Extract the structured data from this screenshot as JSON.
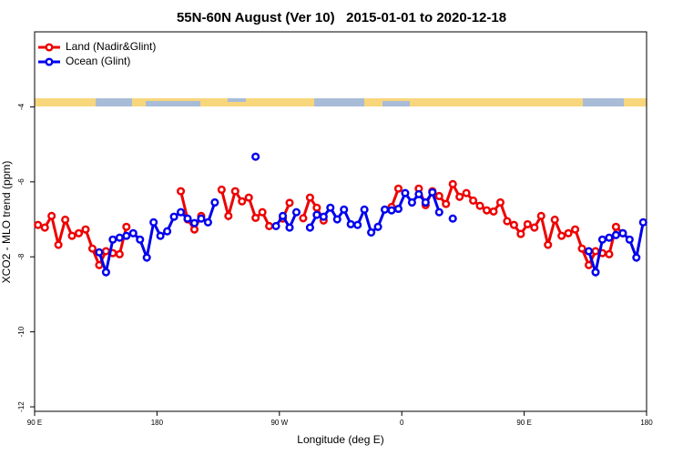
{
  "chart_data": {
    "type": "line",
    "title": "55N-60N August (Ver 10)   2015-01-01 to 2020-12-18",
    "xlabel": "Longitude (deg E)",
    "ylabel": "XCO2 - MLO trend (ppm)",
    "legend": "top-left",
    "xlim": [
      90,
      540
    ],
    "xticks": [
      {
        "value": 90,
        "label": "90 E"
      },
      180,
      {
        "value": 270,
        "label": "90 W"
      },
      {
        "value": 360,
        "label": "0"
      },
      {
        "value": 450,
        "label": "90 E"
      },
      {
        "value": 540,
        "label": "180"
      }
    ],
    "ylim": [
      -12.12,
      -2
    ],
    "yticks": [
      -4,
      -6,
      -8,
      -10,
      -12
    ],
    "x": [
      92.5,
      97.5,
      102.5,
      107.5,
      112.5,
      117.5,
      122.5,
      127.5,
      132.5,
      137.5,
      142.5,
      147.5,
      152.5,
      157.5,
      162.5,
      167.5,
      172.5,
      177.5,
      182.5,
      187.5,
      192.5,
      197.5,
      202.5,
      207.5,
      212.5,
      217.5,
      222.5,
      227.5,
      232.5,
      237.5,
      242.5,
      247.5,
      252.5,
      257.5,
      262.5,
      267.5,
      272.5,
      277.5,
      282.5,
      287.5,
      292.5,
      297.5,
      302.5,
      307.5,
      312.5,
      317.5,
      322.5,
      327.5,
      332.5,
      337.5,
      342.5,
      347.5,
      352.5,
      357.5,
      362.5,
      367.5,
      372.5,
      377.5,
      382.5,
      387.5,
      392.5,
      397.5,
      402.5,
      407.5,
      412.5,
      417.5,
      422.5,
      427.5,
      432.5,
      437.5,
      442.5,
      447.5,
      452.5,
      457.5,
      462.5,
      467.5,
      472.5,
      477.5,
      482.5,
      487.5,
      492.5,
      497.5,
      502.5,
      507.5,
      512.5,
      517.5,
      522.5,
      527.5,
      532.5,
      537.5
    ],
    "series": [
      {
        "name": "Land (Nadir&Glint)",
        "color": "#ee0000",
        "values": [
          -7.15,
          -7.22,
          -6.91,
          -7.68,
          -7.01,
          -7.44,
          -7.37,
          -7.27,
          -7.78,
          -8.22,
          -7.85,
          -7.9,
          -7.93,
          -7.2,
          null,
          null,
          null,
          null,
          null,
          null,
          null,
          -6.25,
          -7.0,
          -7.27,
          -6.91,
          null,
          null,
          -6.21,
          -6.91,
          -6.25,
          -6.52,
          -6.42,
          -6.96,
          -6.81,
          -7.18,
          null,
          -6.98,
          -6.56,
          null,
          -6.97,
          -6.42,
          -6.69,
          -7.03,
          null,
          null,
          null,
          null,
          null,
          null,
          null,
          null,
          null,
          -6.67,
          -6.18,
          null,
          null,
          -6.18,
          -6.62,
          -6.25,
          -6.38,
          -6.59,
          -6.06,
          -6.4,
          -6.3,
          -6.5,
          -6.64,
          -6.76,
          -6.79,
          -6.55,
          -7.05,
          -7.15,
          -7.39,
          -7.13,
          -7.22,
          -6.91,
          -7.68,
          -7.01,
          -7.44,
          -7.37,
          -7.27,
          -7.78,
          -8.22,
          -7.85,
          -7.9,
          -7.93,
          -7.2,
          -7.37,
          null,
          null,
          null
        ]
      },
      {
        "name": "Ocean (Glint)",
        "color": "#0000ee",
        "values": [
          null,
          null,
          null,
          null,
          null,
          null,
          null,
          null,
          null,
          -7.88,
          -8.41,
          -7.54,
          -7.49,
          -7.44,
          -7.37,
          -7.54,
          -8.02,
          -7.08,
          -7.44,
          -7.32,
          -6.93,
          -6.81,
          -6.98,
          -7.1,
          -6.98,
          -7.08,
          -6.55,
          null,
          null,
          null,
          null,
          null,
          -5.33,
          null,
          null,
          -7.18,
          -6.91,
          -7.22,
          -6.81,
          null,
          -7.22,
          -6.88,
          -6.93,
          -6.69,
          -7.0,
          -6.74,
          -7.13,
          -7.15,
          -6.74,
          -7.35,
          -7.2,
          -6.74,
          -6.76,
          -6.72,
          -6.3,
          -6.55,
          -6.33,
          -6.55,
          -6.28,
          -6.81,
          null,
          -6.98,
          null,
          null,
          null,
          null,
          null,
          null,
          null,
          null,
          null,
          null,
          null,
          null,
          null,
          null,
          null,
          null,
          null,
          null,
          null,
          -7.85,
          -8.41,
          -7.54,
          -7.49,
          -7.42,
          -7.37,
          -7.54,
          -8.02,
          -7.08
        ]
      }
    ]
  }
}
